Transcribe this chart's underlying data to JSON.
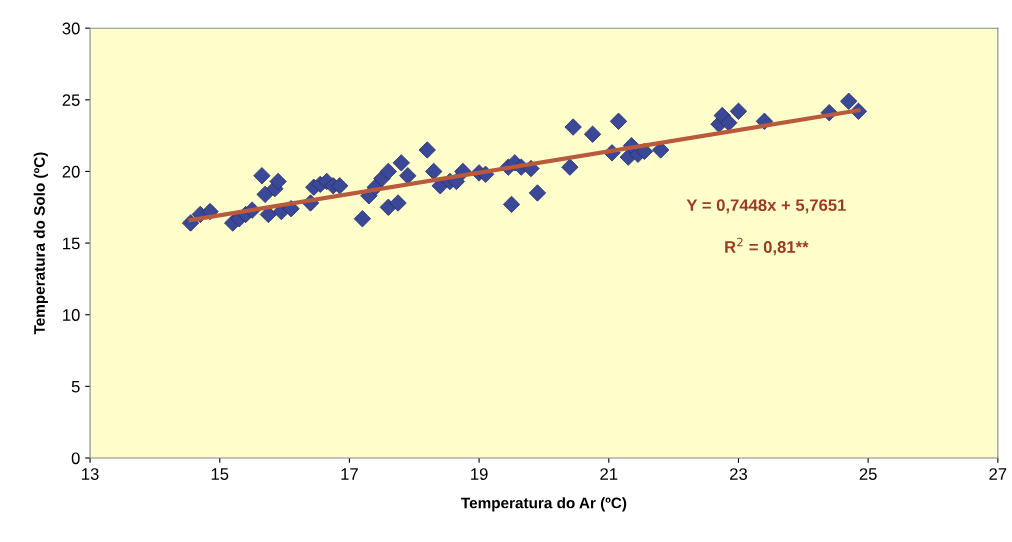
{
  "chart_data": {
    "type": "scatter",
    "xlabel": "Temperatura do Ar (ºC)",
    "ylabel": "Temperatura do Solo (ºC)",
    "xlim": [
      13,
      27
    ],
    "xticks": [
      13,
      15,
      17,
      19,
      21,
      23,
      25,
      27
    ],
    "ylim": [
      0,
      30
    ],
    "yticks": [
      0,
      5,
      10,
      15,
      20,
      25,
      30
    ],
    "grid": false,
    "legend": false,
    "marker": "diamond",
    "annotations": [
      "Y = 0,7448x + 5,7651",
      "R$^{2}$ = 0,81**"
    ],
    "series": [
      {
        "color": "#3b4797",
        "x": [
          14.55,
          14.7,
          14.85,
          15.2,
          15.3,
          15.4,
          15.5,
          15.65,
          15.7,
          15.75,
          15.85,
          15.9,
          15.95,
          16.1,
          16.4,
          16.45,
          16.55,
          16.65,
          16.75,
          16.85,
          17.2,
          17.3,
          17.4,
          17.5,
          17.6,
          17.6,
          17.75,
          17.8,
          17.9,
          18.2,
          18.3,
          18.4,
          18.55,
          18.65,
          18.75,
          19.0,
          19.1,
          19.45,
          19.55,
          19.5,
          19.65,
          19.8,
          19.9,
          20.4,
          20.45,
          20.75,
          21.05,
          21.15,
          21.3,
          21.35,
          21.45,
          21.55,
          21.8,
          22.7,
          22.75,
          22.85,
          23.0,
          23.4,
          24.4,
          24.7,
          24.85
        ],
        "values": [
          16.4,
          17.0,
          17.2,
          16.4,
          16.7,
          17.0,
          17.3,
          19.7,
          18.4,
          17.0,
          18.8,
          19.3,
          17.2,
          17.4,
          17.8,
          18.9,
          19.1,
          19.3,
          19.0,
          19.0,
          16.7,
          18.3,
          18.9,
          19.5,
          20.0,
          17.5,
          17.8,
          20.6,
          19.7,
          21.5,
          20.0,
          19.0,
          19.3,
          19.3,
          20.0,
          19.9,
          19.8,
          20.3,
          20.6,
          17.7,
          20.3,
          20.2,
          18.5,
          20.3,
          23.1,
          22.6,
          21.3,
          23.5,
          21.0,
          21.8,
          21.2,
          21.4,
          21.5,
          23.3,
          23.9,
          23.4,
          24.2,
          23.5,
          24.1,
          24.9,
          24.2
        ]
      },
      {
        "type": "line",
        "color": "#b95a3c",
        "marker": "none",
        "line_style": "solid",
        "x": [
          14.55,
          24.85
        ],
        "values": [
          16.6,
          24.27
        ]
      }
    ]
  }
}
